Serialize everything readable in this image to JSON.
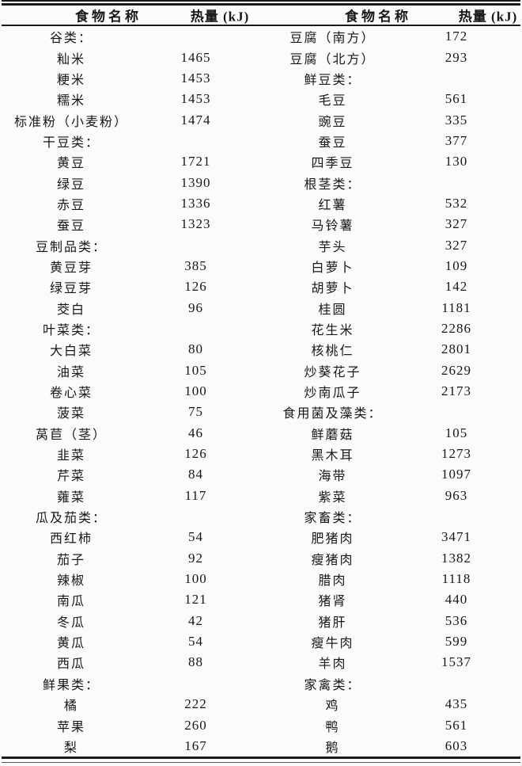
{
  "table": {
    "headers": [
      {
        "label": "食物名称"
      },
      {
        "label": "热量 (kJ)"
      },
      {
        "label": "食物名称"
      },
      {
        "label": "热量 (kJ)"
      }
    ],
    "rows": [
      [
        "谷类：",
        "",
        "豆腐（南方）",
        "172"
      ],
      [
        "籼米",
        "1465",
        "豆腐（北方）",
        "293"
      ],
      [
        "粳米",
        "1453",
        "鲜豆类：",
        ""
      ],
      [
        "糯米",
        "1453",
        "毛豆",
        "561"
      ],
      [
        "标准粉（小麦粉）",
        "1474",
        "豌豆",
        "335"
      ],
      [
        "干豆类：",
        "",
        "蚕豆",
        "377"
      ],
      [
        "黄豆",
        "1721",
        "四季豆",
        "130"
      ],
      [
        "绿豆",
        "1390",
        "根茎类：",
        ""
      ],
      [
        "赤豆",
        "1336",
        "红薯",
        "532"
      ],
      [
        "蚕豆",
        "1323",
        "马铃薯",
        "327"
      ],
      [
        "豆制品类：",
        "",
        "芋头",
        "327"
      ],
      [
        "黄豆芽",
        "385",
        "白萝卜",
        "109"
      ],
      [
        "绿豆芽",
        "126",
        "胡萝卜",
        "142"
      ],
      [
        "茭白",
        "96",
        "桂圆",
        "1181"
      ],
      [
        "叶菜类：",
        "",
        "花生米",
        "2286"
      ],
      [
        "大白菜",
        "80",
        "核桃仁",
        "2801"
      ],
      [
        "油菜",
        "105",
        "炒葵花子",
        "2629"
      ],
      [
        "卷心菜",
        "100",
        "炒南瓜子",
        "2173"
      ],
      [
        "菠菜",
        "75",
        "食用菌及藻类：",
        ""
      ],
      [
        "莴苣（茎）",
        "46",
        "鲜蘑菇",
        "105"
      ],
      [
        "韭菜",
        "126",
        "黑木耳",
        "1273"
      ],
      [
        "芹菜",
        "84",
        "海带",
        "1097"
      ],
      [
        "蕹菜",
        "117",
        "紫菜",
        "963"
      ],
      [
        "瓜及茄类：",
        "",
        "家畜类：",
        ""
      ],
      [
        "西红柿",
        "54",
        "肥猪肉",
        "3471"
      ],
      [
        "茄子",
        "92",
        "瘦猪肉",
        "1382"
      ],
      [
        "辣椒",
        "100",
        "腊肉",
        "1118"
      ],
      [
        "南瓜",
        "121",
        "猪肾",
        "440"
      ],
      [
        "冬瓜",
        "42",
        "猪肝",
        "536"
      ],
      [
        "黄瓜",
        "54",
        "瘦牛肉",
        "599"
      ],
      [
        "西瓜",
        "88",
        "羊肉",
        "1537"
      ],
      [
        "鲜果类：",
        "",
        "家禽类：",
        ""
      ],
      [
        "橘",
        "222",
        "鸡",
        "435"
      ],
      [
        "苹果",
        "260",
        "鸭",
        "561"
      ],
      [
        "梨",
        "167",
        "鹅",
        "603"
      ]
    ]
  }
}
